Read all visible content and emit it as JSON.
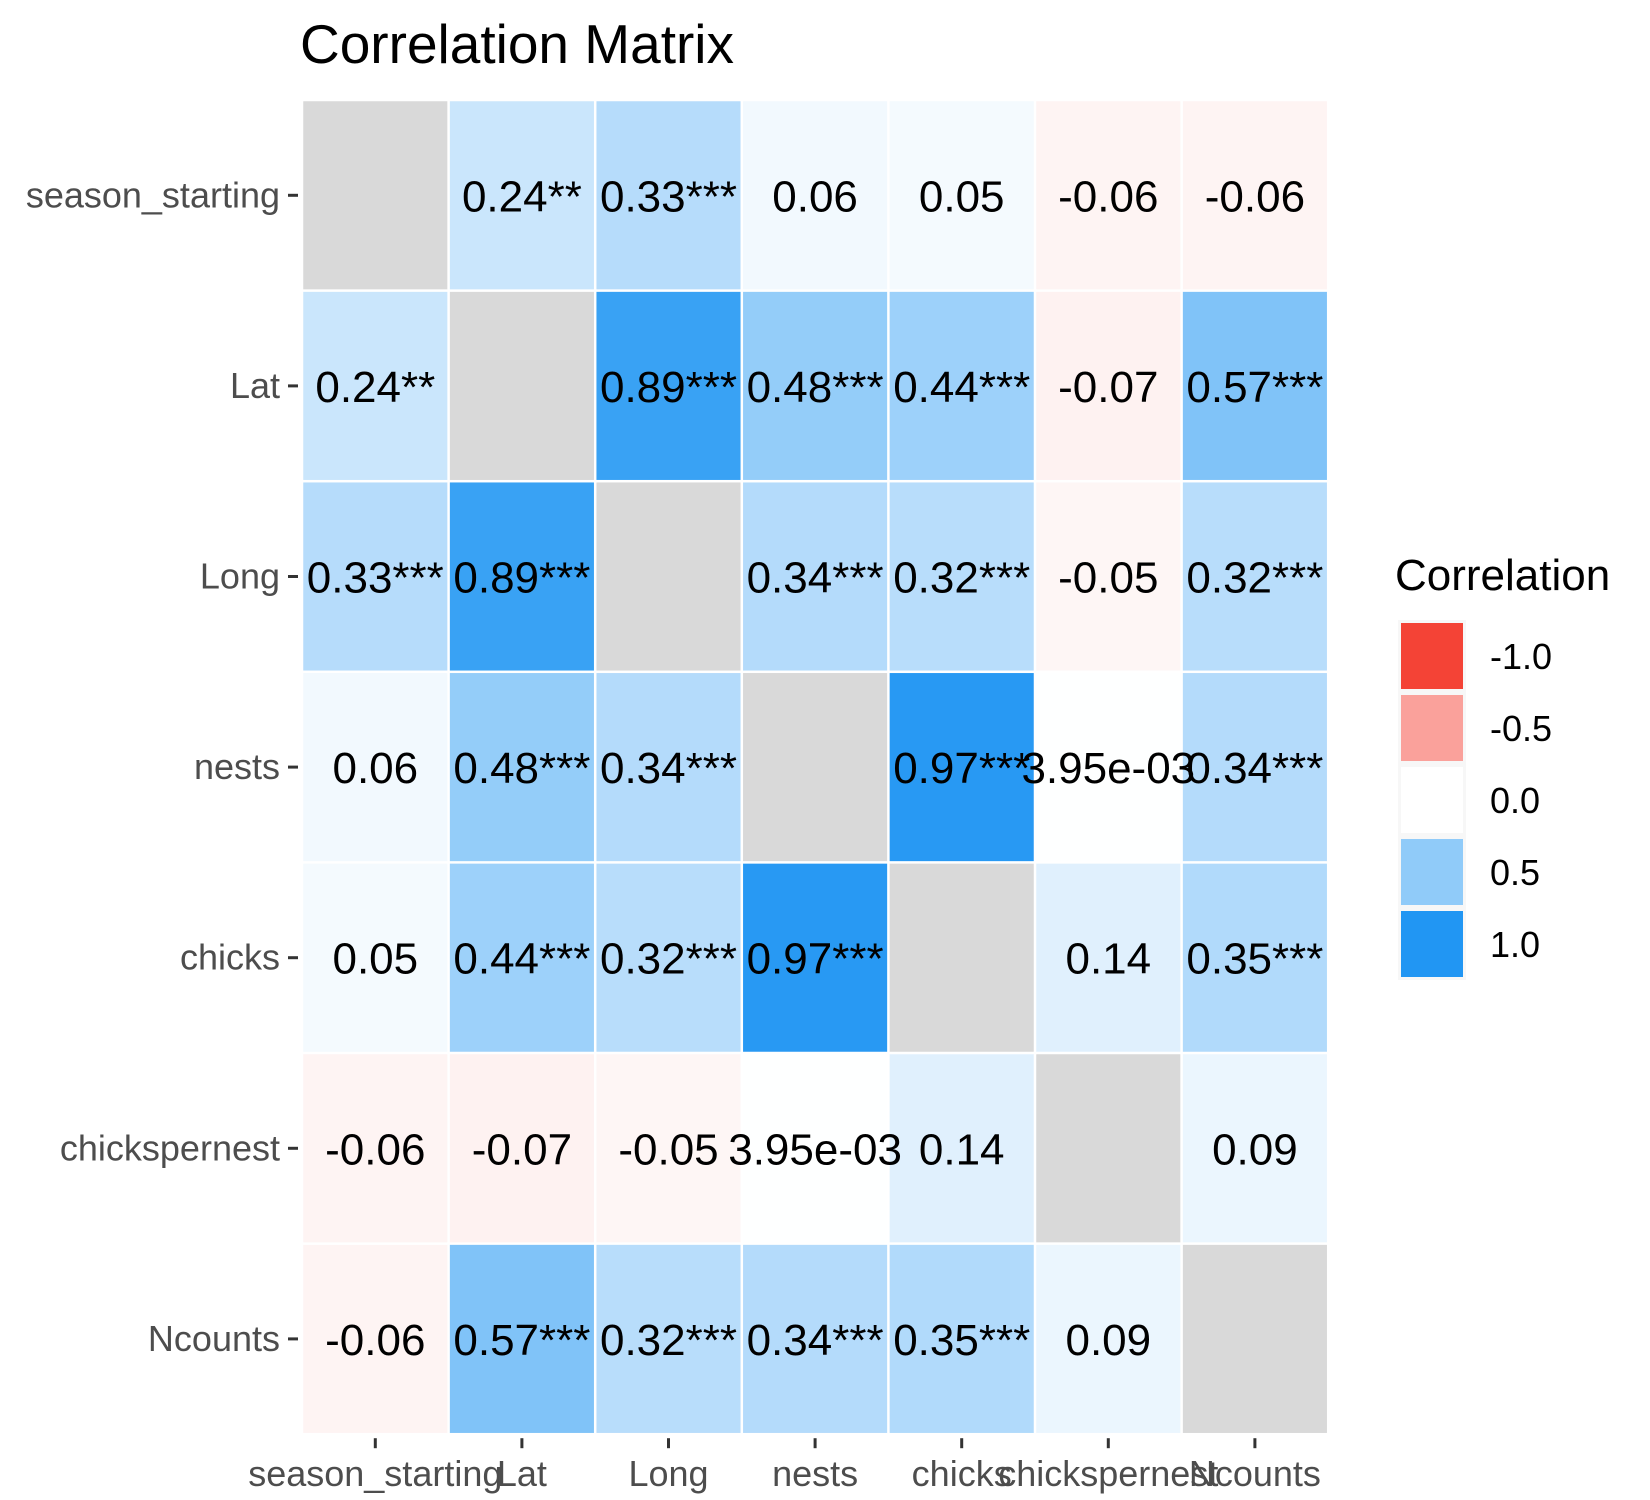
{
  "chart_data": {
    "type": "heatmap",
    "title": "Correlation Matrix",
    "xlabel": "",
    "ylabel": "",
    "variables": [
      "season_starting",
      "Lat",
      "Long",
      "nests",
      "chicks",
      "chickspernest",
      "Ncounts"
    ],
    "values": [
      [
        null,
        0.24,
        0.33,
        0.06,
        0.05,
        -0.06,
        -0.06
      ],
      [
        0.24,
        null,
        0.89,
        0.48,
        0.44,
        -0.07,
        0.57
      ],
      [
        0.33,
        0.89,
        null,
        0.34,
        0.32,
        -0.05,
        0.32
      ],
      [
        0.06,
        0.48,
        0.34,
        null,
        0.97,
        0.00395,
        0.34
      ],
      [
        0.05,
        0.44,
        0.32,
        0.97,
        null,
        0.14,
        0.35
      ],
      [
        -0.06,
        -0.07,
        -0.05,
        0.00395,
        0.14,
        null,
        0.09
      ],
      [
        -0.06,
        0.57,
        0.32,
        0.34,
        0.35,
        0.09,
        null
      ]
    ],
    "labels": [
      [
        "",
        "0.24**",
        "0.33***",
        "0.06",
        "0.05",
        "-0.06",
        "-0.06"
      ],
      [
        "0.24**",
        "",
        "0.89***",
        "0.48***",
        "0.44***",
        "-0.07",
        "0.57***"
      ],
      [
        "0.33***",
        "0.89***",
        "",
        "0.34***",
        "0.32***",
        "-0.05",
        "0.32***"
      ],
      [
        "0.06",
        "0.48***",
        "0.34***",
        "",
        "0.97***",
        "3.95e-03",
        "0.34***"
      ],
      [
        "0.05",
        "0.44***",
        "0.32***",
        "0.97***",
        "",
        "0.14",
        "0.35***"
      ],
      [
        "-0.06",
        "-0.07",
        "-0.05",
        "3.95e-03",
        "0.14",
        "",
        "0.09"
      ],
      [
        "-0.06",
        "0.57***",
        "0.32***",
        "0.34***",
        "0.35***",
        "0.09",
        ""
      ]
    ],
    "color_scale": {
      "low": "#F44336",
      "mid": "#FFFFFF",
      "high": "#2196F3",
      "na": "#D9D9D9"
    },
    "legend": {
      "title": "Correlation",
      "placement": "right",
      "breaks": [
        -1.0,
        -0.5,
        0.0,
        0.5,
        1.0
      ],
      "break_labels": [
        "-1.0",
        "-0.5",
        "0.0",
        "0.5",
        "1.0"
      ]
    }
  }
}
